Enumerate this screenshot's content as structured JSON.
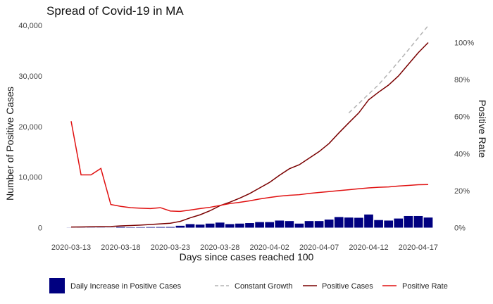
{
  "chart_data": {
    "type": "bar+line",
    "title": "Spread of Covid-19 in MA",
    "xlabel": "Days since cases reached 100",
    "ylabel_left": "Number of Positive Cases",
    "ylabel_right": "Positive Rate",
    "x_tick_labels": [
      "2020-03-13",
      "2020-03-18",
      "2020-03-23",
      "2020-03-28",
      "2020-04-02",
      "2020-04-07",
      "2020-04-12",
      "2020-04-17"
    ],
    "y_left_ticks": [
      "0",
      "10,000",
      "20,000",
      "30,000",
      "40,000"
    ],
    "y_right_ticks": [
      "0%",
      "20%",
      "40%",
      "60%",
      "80%",
      "100%"
    ],
    "y_left_range": [
      0,
      40000
    ],
    "y_right_range": [
      0,
      1.0
    ],
    "grid": false,
    "legend_position": "bottom",
    "colors": {
      "daily": "#000080",
      "cumulative": "#7a0000",
      "constant_growth": "#b3b3b3",
      "positive_rate": "#e01010"
    },
    "dates": [
      "2020-03-13",
      "2020-03-14",
      "2020-03-15",
      "2020-03-16",
      "2020-03-17",
      "2020-03-18",
      "2020-03-19",
      "2020-03-20",
      "2020-03-21",
      "2020-03-22",
      "2020-03-23",
      "2020-03-24",
      "2020-03-25",
      "2020-03-26",
      "2020-03-27",
      "2020-03-28",
      "2020-03-29",
      "2020-03-30",
      "2020-03-31",
      "2020-04-01",
      "2020-04-02",
      "2020-04-03",
      "2020-04-04",
      "2020-04-05",
      "2020-04-06",
      "2020-04-07",
      "2020-04-08",
      "2020-04-09",
      "2020-04-10",
      "2020-04-11",
      "2020-04-12",
      "2020-04-13",
      "2020-04-14",
      "2020-04-15",
      "2020-04-16",
      "2020-04-17",
      "2020-04-18"
    ],
    "series": [
      {
        "name": "Daily Increase in Positive Cases",
        "kind": "bar",
        "values": [
          20,
          30,
          30,
          30,
          20,
          130,
          70,
          85,
          110,
          120,
          130,
          370,
          700,
          600,
          800,
          1000,
          700,
          800,
          900,
          1100,
          1100,
          1400,
          1300,
          800,
          1300,
          1300,
          1600,
          2100,
          2000,
          1950,
          2600,
          1500,
          1400,
          1800,
          2300,
          2300,
          2000
        ]
      },
      {
        "name": "Positive Cases",
        "kind": "line",
        "values": [
          120,
          140,
          170,
          200,
          220,
          350,
          420,
          510,
          620,
          740,
          870,
          1240,
          1940,
          2540,
          3340,
          4340,
          5040,
          5840,
          6740,
          7840,
          8940,
          10340,
          11640,
          12440,
          13740,
          15040,
          16640,
          18740,
          20740,
          22690,
          25290,
          26790,
          28190,
          29990,
          32290,
          34590,
          36590
        ]
      },
      {
        "name": "Constant Growth",
        "kind": "dashed-line",
        "values": [
          null,
          null,
          null,
          null,
          null,
          null,
          null,
          null,
          null,
          null,
          null,
          null,
          null,
          null,
          null,
          null,
          null,
          null,
          null,
          null,
          null,
          null,
          null,
          null,
          null,
          null,
          null,
          null,
          22690,
          24550,
          26410,
          28270,
          30500,
          32800,
          35150,
          37550,
          39950
        ]
      },
      {
        "name": "Positive Rate",
        "kind": "line",
        "axis": "right",
        "values": [
          0.575,
          0.285,
          0.285,
          0.32,
          0.125,
          0.115,
          0.108,
          0.105,
          0.103,
          0.108,
          0.09,
          0.088,
          0.095,
          0.103,
          0.11,
          0.12,
          0.13,
          0.137,
          0.145,
          0.155,
          0.163,
          0.17,
          0.175,
          0.178,
          0.185,
          0.19,
          0.195,
          0.2,
          0.205,
          0.21,
          0.215,
          0.218,
          0.22,
          0.225,
          0.228,
          0.232,
          0.233
        ]
      }
    ],
    "legend": [
      {
        "label": "Daily Increase in Positive Cases",
        "kind": "box",
        "color": "#000080"
      },
      {
        "label": "Constant Growth",
        "kind": "dashed-line",
        "color": "#b3b3b3"
      },
      {
        "label": "Positive Cases",
        "kind": "line",
        "color": "#7a0000"
      },
      {
        "label": "Positive Rate",
        "kind": "line",
        "color": "#e01010"
      }
    ]
  }
}
